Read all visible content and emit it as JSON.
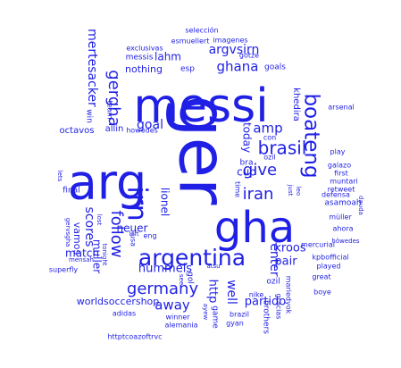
{
  "word_cloud": {
    "color": "#1f1fe6",
    "words": [
      "messi",
      "ger",
      "arg",
      "gha",
      "irn",
      "argentina",
      "boateng",
      "brasil",
      "germany",
      "iran",
      "give",
      "follow",
      "gergha",
      "ghana",
      "amp",
      "mertesacker",
      "argvsirn",
      "hummels",
      "away",
      "goal",
      "kroos",
      "enter",
      "pair",
      "partido",
      "scores",
      "worldsoccershop",
      "well",
      "lahm",
      "http",
      "today",
      "cup",
      "lionel",
      "neuer",
      "muller",
      "match",
      "nothing",
      "vamos",
      "final",
      "octavos",
      "allin",
      "team",
      "win",
      "howedes",
      "messis",
      "esp",
      "gotze",
      "goals",
      "exclusivas",
      "selección",
      "esmuellert",
      "imagenes",
      "arsenal",
      "play",
      "khedira",
      "con",
      "bra",
      "ozil",
      "galazo",
      "first",
      "muntari",
      "retweet",
      "defensa",
      "asamoah",
      "müller",
      "ahora",
      "höwedes",
      "kpbofficial",
      "played",
      "great",
      "boye",
      "mercurial",
      "ozil",
      "nike",
      "brothers",
      "gracias",
      "mariedyok",
      "brazil",
      "gyan",
      "game",
      "gol",
      "ayew",
      "winner",
      "alemania",
      "adidas",
      "httptcoazoftrvc",
      "see",
      "atsu",
      "superfly",
      "mensah",
      "tonight",
      "lost",
      "gervsgha",
      "lets",
      "usa",
      "eng",
      "left",
      "time",
      "just",
      "leo",
      "dauda"
    ]
  }
}
